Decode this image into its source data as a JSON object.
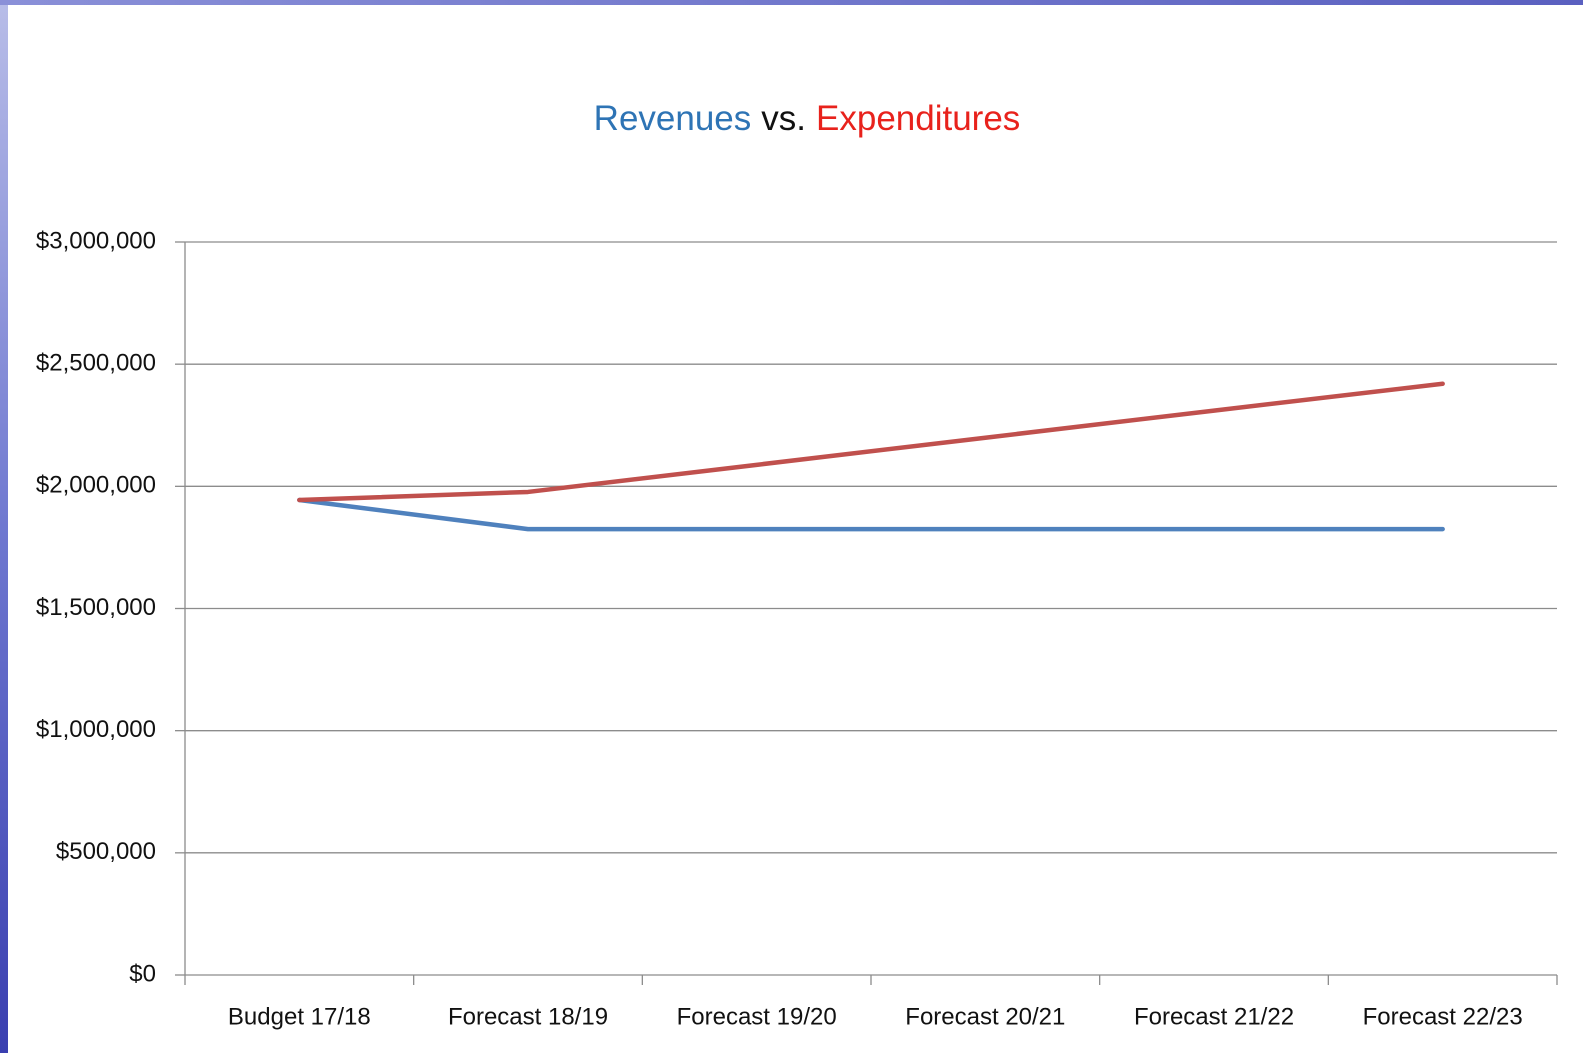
{
  "chart_data": {
    "type": "line",
    "title_connector": "vs.",
    "categories": [
      "Budget 17/18",
      "Forecast 18/19",
      "Forecast 19/20",
      "Forecast 20/21",
      "Forecast 21/22",
      "Forecast 22/23"
    ],
    "series": [
      {
        "name": "Revenues",
        "color": "#4f81bd",
        "title_color": "#2e74b5",
        "values": [
          1944000,
          1825000,
          1825000,
          1825000,
          1825000,
          1825000
        ]
      },
      {
        "name": "Expenditures",
        "color": "#c0504d",
        "title_color": "#e8221c",
        "values": [
          1944000,
          1977000,
          2088000,
          2199000,
          2310000,
          2420000
        ]
      }
    ],
    "ylim": [
      0,
      3000000
    ],
    "yticks": [
      {
        "value": 0,
        "label": "$0"
      },
      {
        "value": 500000,
        "label": "$500,000"
      },
      {
        "value": 1000000,
        "label": "$1,000,000"
      },
      {
        "value": 1500000,
        "label": "$1,500,000"
      },
      {
        "value": 2000000,
        "label": "$2,000,000"
      },
      {
        "value": 2500000,
        "label": "$2,500,000"
      },
      {
        "value": 3000000,
        "label": "$3,000,000"
      }
    ],
    "grid": true
  }
}
